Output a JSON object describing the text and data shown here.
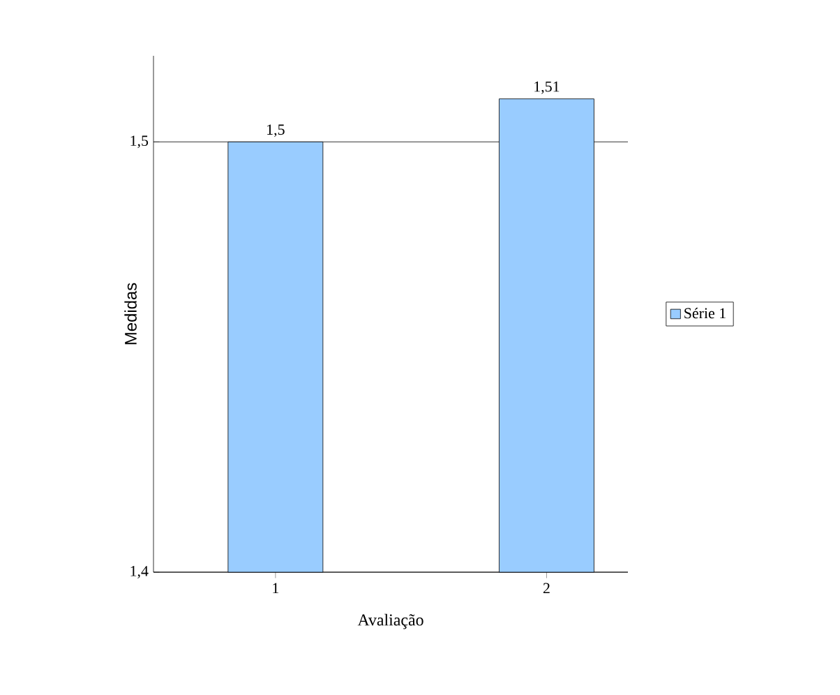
{
  "chart_data": {
    "type": "bar",
    "xlabel": "Avaliação",
    "ylabel": "Medidas",
    "categories": [
      "1",
      "2"
    ],
    "series": [
      {
        "name": "Série 1",
        "color": "#99ccff",
        "values": [
          1.5,
          1.51
        ],
        "value_labels": [
          "1,5",
          "1,51"
        ]
      }
    ],
    "ylim": [
      1.4,
      1.52
    ],
    "yticks": [
      {
        "value": 1.4,
        "label": "1,4"
      },
      {
        "value": 1.5,
        "label": "1,5"
      }
    ],
    "grid": "y",
    "legend": "right"
  }
}
